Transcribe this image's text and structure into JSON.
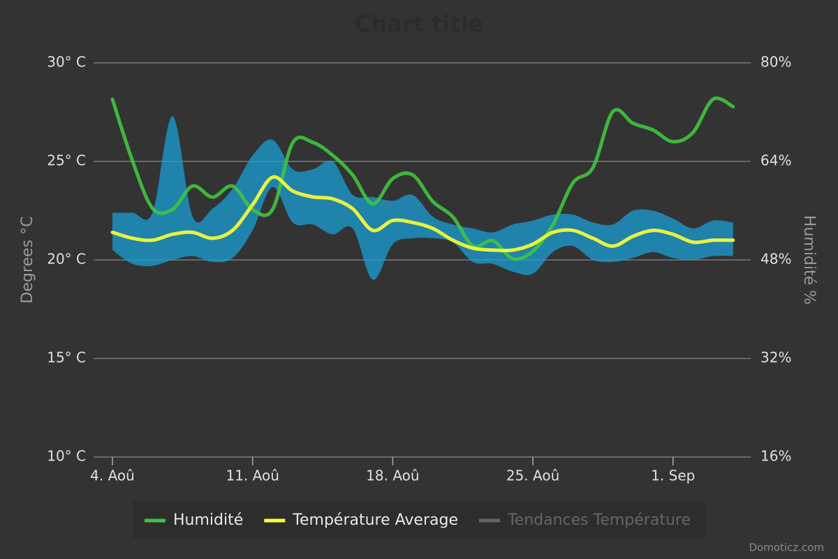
{
  "chart_data": {
    "type": "line",
    "title": "Chart title",
    "yaxis_title": "Degrees °C",
    "y2axis_title": "Humidité %",
    "credits": "Domoticz.com",
    "categories": [
      "4. Aoû",
      null,
      null,
      null,
      null,
      null,
      null,
      "11. Aoû",
      null,
      null,
      null,
      null,
      null,
      null,
      "18. Aoû",
      null,
      null,
      null,
      null,
      null,
      null,
      "25. Aoû",
      null,
      null,
      null,
      null,
      null,
      null,
      "1. Sep",
      null,
      null,
      null
    ],
    "ylim": [
      10,
      30
    ],
    "yticks": [
      {
        "value": 10,
        "label": "10° C"
      },
      {
        "value": 15,
        "label": "15° C"
      },
      {
        "value": 20,
        "label": "20° C"
      },
      {
        "value": 25,
        "label": "25° C"
      },
      {
        "value": 30,
        "label": "30° C"
      }
    ],
    "y2lim": [
      16,
      80
    ],
    "y2ticks": [
      {
        "value": 16,
        "label": "16%"
      },
      {
        "value": 32,
        "label": "32%"
      },
      {
        "value": 48,
        "label": "48%"
      },
      {
        "value": 64,
        "label": "64%"
      },
      {
        "value": 80,
        "label": "80%"
      }
    ],
    "grid": true,
    "series": [
      {
        "name": "Humidité",
        "color": "#3fc43f",
        "axis": "y2",
        "values": [
          74.1,
          64.1,
          56.4,
          56.2,
          60.0,
          58.2,
          60.0,
          56.2,
          56.2,
          67.0,
          67.1,
          65.0,
          61.8,
          57.1,
          61.2,
          61.8,
          57.5,
          55.0,
          50.3,
          51.1,
          48.2,
          49.4,
          53.7,
          60.5,
          63.0,
          72.1,
          70.2,
          69.1,
          67.2,
          68.7,
          74.1,
          72.9
        ]
      },
      {
        "name": "Température Average",
        "color": "#ffff33",
        "values": [
          21.4,
          21.1,
          21.0,
          21.3,
          21.4,
          21.1,
          21.5,
          22.8,
          24.2,
          23.5,
          23.2,
          23.1,
          22.6,
          21.5,
          22.0,
          21.9,
          21.6,
          21.0,
          20.6,
          20.5,
          20.5,
          20.8,
          21.4,
          21.5,
          21.1,
          20.7,
          21.2,
          21.5,
          21.3,
          20.9,
          21.0,
          21.0
        ]
      },
      {
        "name": "Tendances Température",
        "color": "#666666",
        "visible": false
      },
      {
        "type": "arearange",
        "color": "#1a9fd4",
        "high": [
          22.4,
          22.4,
          22.4,
          27.3,
          22.2,
          22.6,
          23.6,
          25.3,
          26.1,
          24.6,
          24.6,
          25.0,
          23.3,
          23.2,
          23.0,
          23.3,
          22.2,
          21.8,
          21.6,
          21.4,
          21.8,
          22.0,
          22.3,
          22.3,
          21.9,
          21.8,
          22.5,
          22.5,
          22.1,
          21.6,
          22.0,
          21.9
        ],
        "low": [
          20.5,
          19.8,
          19.7,
          20.0,
          20.2,
          19.9,
          20.1,
          21.5,
          23.7,
          21.9,
          21.8,
          21.3,
          21.6,
          19.0,
          20.8,
          21.1,
          21.1,
          20.9,
          19.9,
          19.8,
          19.4,
          19.3,
          20.4,
          20.7,
          20.0,
          19.9,
          20.1,
          20.4,
          20.1,
          20.0,
          20.2,
          20.2
        ]
      }
    ]
  }
}
